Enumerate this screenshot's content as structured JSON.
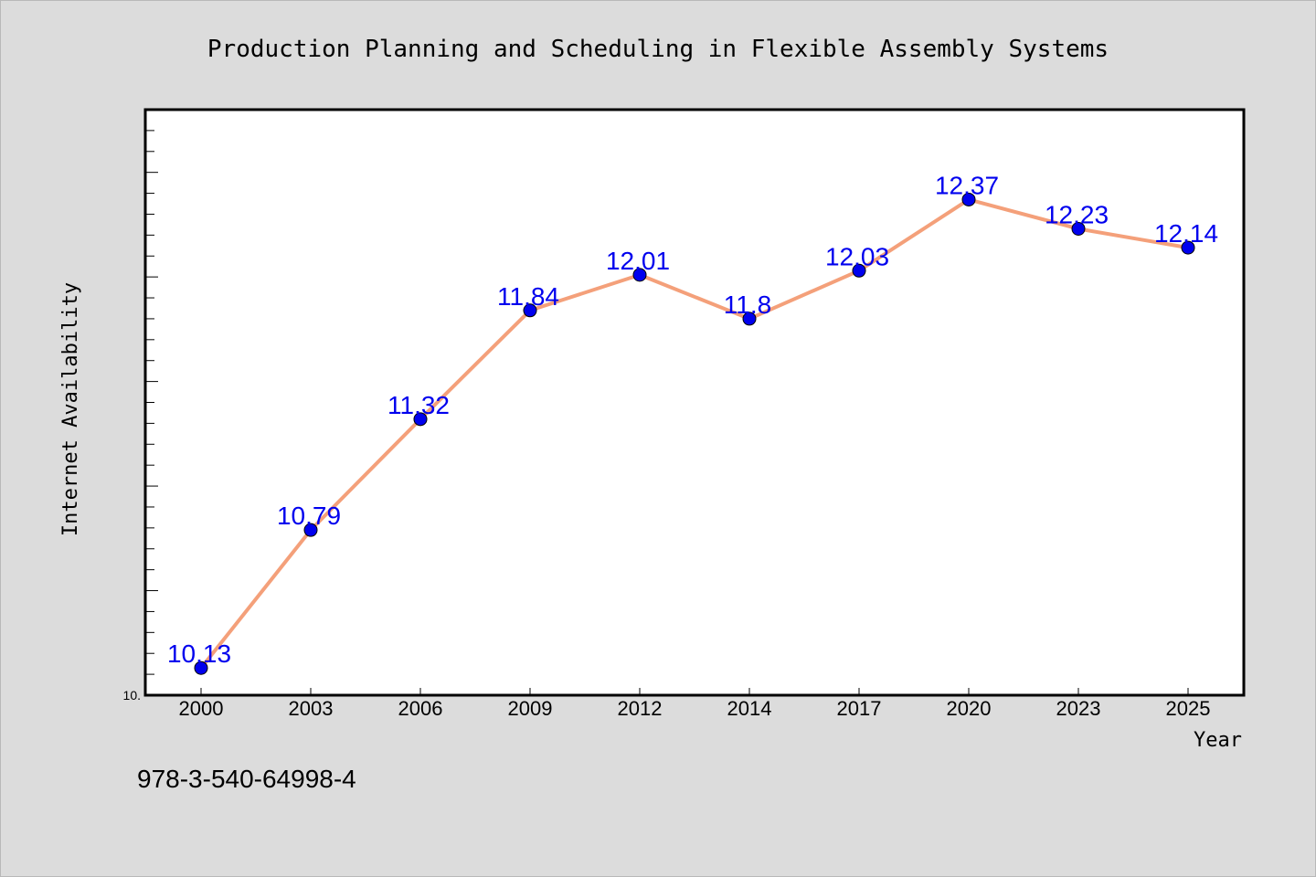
{
  "chart_data": {
    "type": "line",
    "title": "Production Planning and Scheduling in Flexible Assembly Systems",
    "xlabel": "Year",
    "ylabel": "Internet Availability",
    "categories": [
      "2000",
      "2003",
      "2006",
      "2009",
      "2012",
      "2014",
      "2017",
      "2020",
      "2023",
      "2025"
    ],
    "series": [
      {
        "values": [
          10.13,
          10.79,
          11.32,
          11.84,
          12.01,
          11.8,
          12.03,
          12.37,
          12.23,
          12.14
        ]
      }
    ],
    "data_labels": [
      "10.13",
      "10.79",
      "11.32",
      "11.84",
      "12.01",
      "11.8",
      "12.03",
      "12.37",
      "12.23",
      "12.14"
    ],
    "ylim": [
      10.0,
      12.8
    ],
    "y_tick_label": "10.",
    "grid": false,
    "legend": "none",
    "colors": {
      "line": "#f4a07a",
      "marker": "#0000ee",
      "label": "#0000ee",
      "plot_bg": "#ffffff",
      "page_bg": "#dcdcdc"
    }
  },
  "footer": {
    "isbn": "978-3-540-64998-4"
  }
}
